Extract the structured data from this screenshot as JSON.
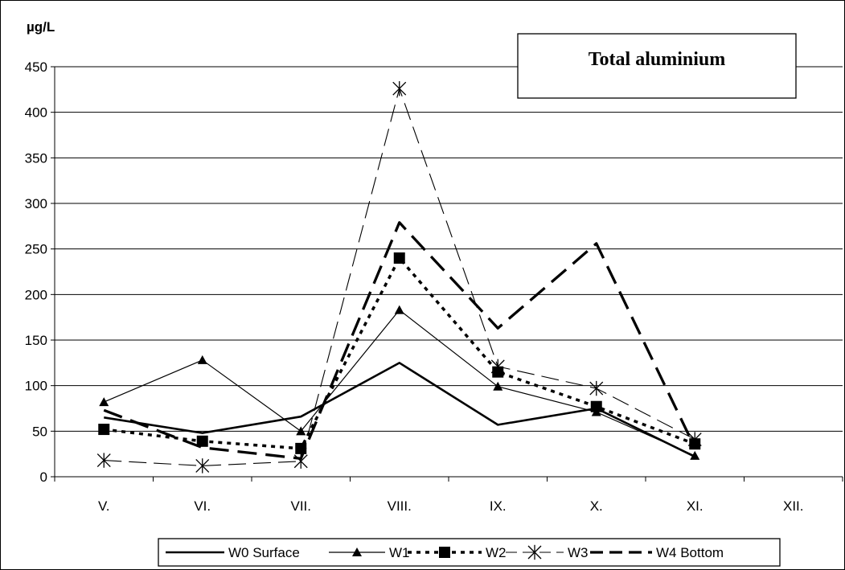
{
  "chart_data": {
    "type": "line",
    "title": "Total aluminium",
    "unit_label": "µg/L",
    "categories": [
      "V.",
      "VI.",
      "VII.",
      "VIII.",
      "IX.",
      "X.",
      "XI.",
      "XII."
    ],
    "ylim": [
      0,
      450
    ],
    "yticks": [
      0,
      50,
      100,
      150,
      200,
      250,
      300,
      350,
      400,
      450
    ],
    "grid": true,
    "legend_position": "bottom",
    "series": [
      {
        "name": "W0 Surface",
        "values": [
          65,
          48,
          66,
          125,
          57,
          75,
          22,
          null
        ],
        "line": "solid-thick",
        "marker": "none"
      },
      {
        "name": "W1",
        "values": [
          82,
          128,
          50,
          183,
          99,
          71,
          23,
          null
        ],
        "line": "solid-thin",
        "marker": "triangle"
      },
      {
        "name": "W2",
        "values": [
          52,
          39,
          31,
          240,
          115,
          77,
          36,
          null
        ],
        "line": "dotted-thick",
        "marker": "square"
      },
      {
        "name": "W3",
        "values": [
          18,
          12,
          17,
          426,
          121,
          97,
          41,
          null
        ],
        "line": "dashed-thin",
        "marker": "star"
      },
      {
        "name": "W4 Bottom",
        "values": [
          73,
          32,
          20,
          279,
          163,
          256,
          32,
          null
        ],
        "line": "dashed-thick",
        "marker": "none"
      }
    ]
  }
}
